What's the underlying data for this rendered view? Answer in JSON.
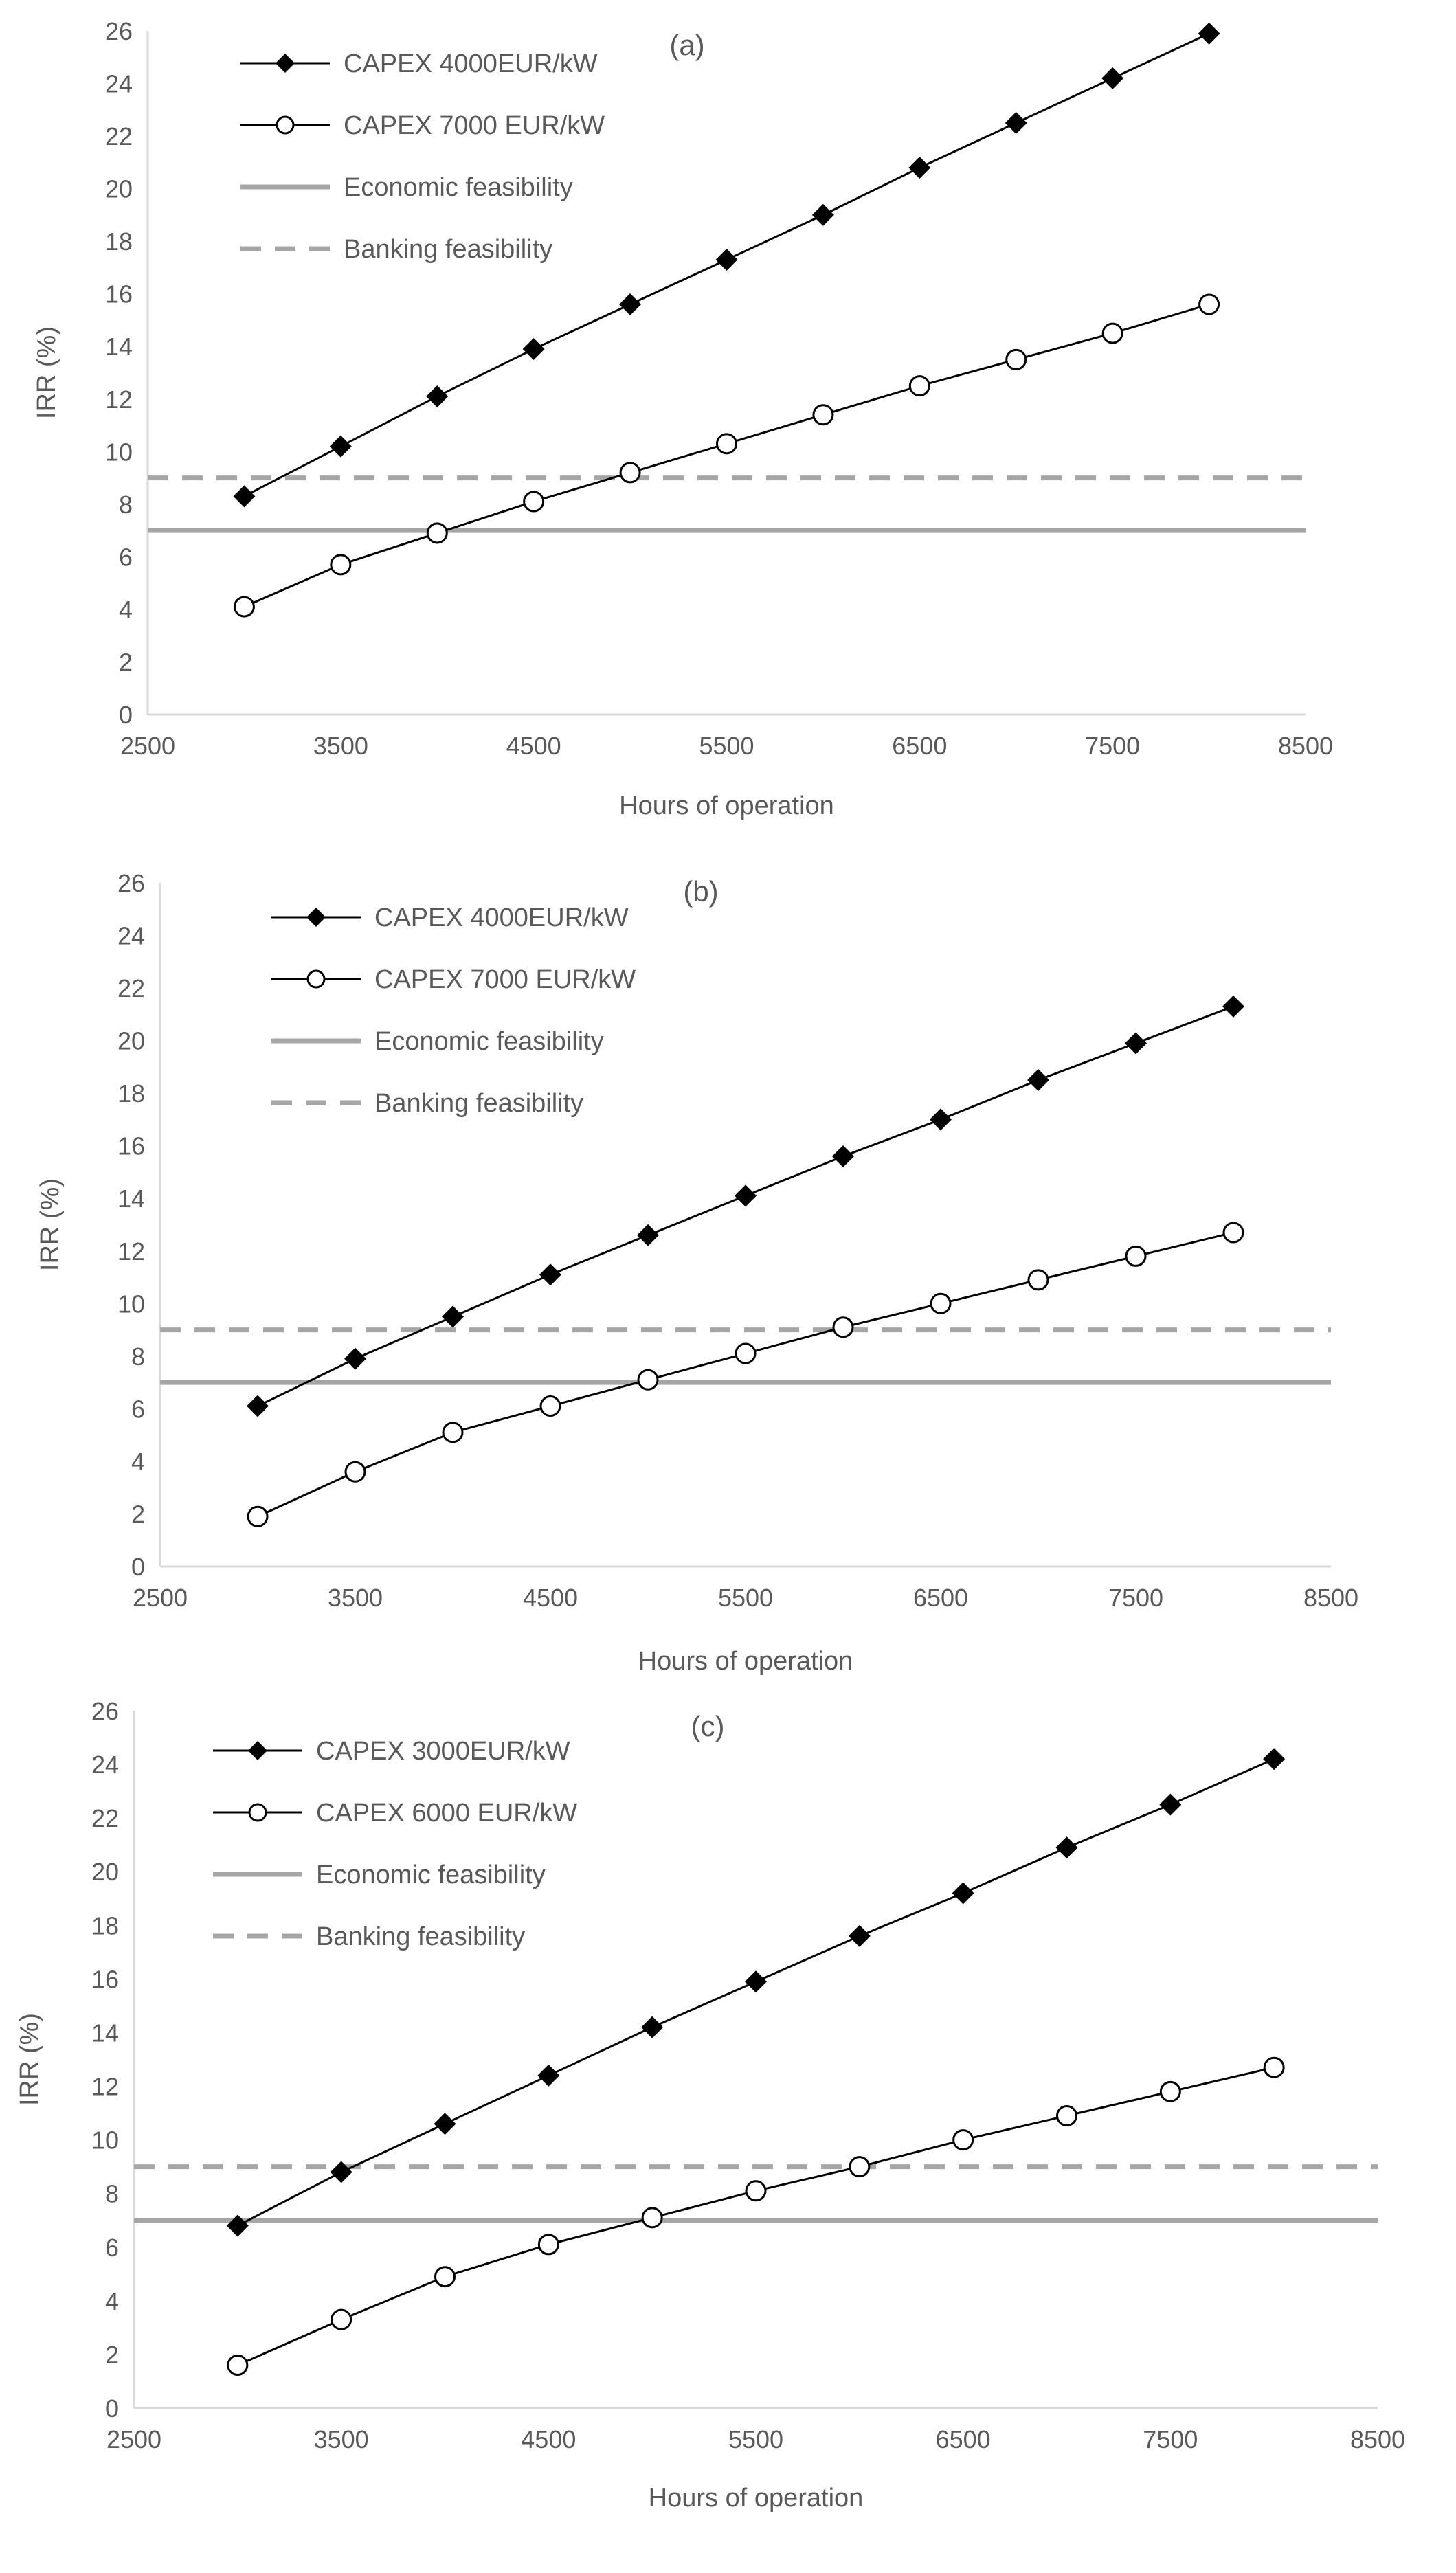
{
  "chart_data": [
    {
      "type": "line",
      "panel_label": "(a)",
      "xlabel": "Hours of operation",
      "ylabel": "IRR (%)",
      "xlim": [
        2500,
        8500
      ],
      "ylim": [
        0,
        26
      ],
      "x_ticks": [
        2500,
        3500,
        4500,
        5500,
        6500,
        7500,
        8500
      ],
      "y_ticks": [
        0,
        2,
        4,
        6,
        8,
        10,
        12,
        14,
        16,
        18,
        20,
        22,
        24,
        26
      ],
      "x": [
        3000,
        3500,
        4000,
        4500,
        5000,
        5500,
        6000,
        6500,
        7000,
        7500,
        8000
      ],
      "series": [
        {
          "name": "CAPEX 4000EUR/kW",
          "marker": "diamond-filled",
          "values": [
            8.3,
            10.2,
            12.1,
            13.9,
            15.6,
            17.3,
            19.0,
            20.8,
            22.5,
            24.2,
            25.9
          ]
        },
        {
          "name": "CAPEX 7000 EUR/kW",
          "marker": "circle-open",
          "values": [
            4.1,
            5.7,
            6.9,
            8.1,
            9.2,
            10.3,
            11.4,
            12.5,
            13.5,
            14.5,
            15.6
          ]
        }
      ],
      "reference_lines": [
        {
          "name": "Economic feasibility",
          "style": "solid",
          "value": 7.0
        },
        {
          "name": "Banking feasibility",
          "style": "dashed",
          "value": 9.0
        }
      ],
      "legend": "top-left"
    },
    {
      "type": "line",
      "panel_label": "(b)",
      "xlabel": "Hours of operation",
      "ylabel": "IRR (%)",
      "xlim": [
        2500,
        8500
      ],
      "ylim": [
        0,
        26
      ],
      "x_ticks": [
        2500,
        3500,
        4500,
        5500,
        6500,
        7500,
        8500
      ],
      "y_ticks": [
        0,
        2,
        4,
        6,
        8,
        10,
        12,
        14,
        16,
        18,
        20,
        22,
        24,
        26
      ],
      "x": [
        3000,
        3500,
        4000,
        4500,
        5000,
        5500,
        6000,
        6500,
        7000,
        7500,
        8000
      ],
      "series": [
        {
          "name": "CAPEX 4000EUR/kW",
          "marker": "diamond-filled",
          "values": [
            6.1,
            7.9,
            9.5,
            11.1,
            12.6,
            14.1,
            15.6,
            17.0,
            18.5,
            19.9,
            21.3
          ]
        },
        {
          "name": "CAPEX 7000 EUR/kW",
          "marker": "circle-open",
          "values": [
            1.9,
            3.6,
            5.1,
            6.1,
            7.1,
            8.1,
            9.1,
            10.0,
            10.9,
            11.8,
            12.7
          ]
        }
      ],
      "reference_lines": [
        {
          "name": "Economic feasibility",
          "style": "solid",
          "value": 7.0
        },
        {
          "name": "Banking feasibility",
          "style": "dashed",
          "value": 9.0
        }
      ],
      "legend": "top-left"
    },
    {
      "type": "line",
      "panel_label": "(c)",
      "xlabel": "Hours of operation",
      "ylabel": "IRR (%)",
      "xlim": [
        2500,
        8500
      ],
      "ylim": [
        0,
        26
      ],
      "x_ticks": [
        2500,
        3500,
        4500,
        5500,
        6500,
        7500,
        8500
      ],
      "y_ticks": [
        0,
        2,
        4,
        6,
        8,
        10,
        12,
        14,
        16,
        18,
        20,
        22,
        24,
        26
      ],
      "x": [
        3000,
        3500,
        4000,
        4500,
        5000,
        5500,
        6000,
        6500,
        7000,
        7500,
        8000
      ],
      "series": [
        {
          "name": "CAPEX 3000EUR/kW",
          "marker": "diamond-filled",
          "values": [
            6.8,
            8.8,
            10.6,
            12.4,
            14.2,
            15.9,
            17.6,
            19.2,
            20.9,
            22.5,
            24.2
          ]
        },
        {
          "name": "CAPEX 6000 EUR/kW",
          "marker": "circle-open",
          "values": [
            1.6,
            3.3,
            4.9,
            6.1,
            7.1,
            8.1,
            9.0,
            10.0,
            10.9,
            11.8,
            12.7
          ]
        }
      ],
      "reference_lines": [
        {
          "name": "Economic feasibility",
          "style": "solid",
          "value": 7.0
        },
        {
          "name": "Banking feasibility",
          "style": "dashed",
          "value": 9.0
        }
      ],
      "legend": "top-left"
    }
  ],
  "colors": {
    "series_line": "#000000",
    "reference_line": "#a6a6a6",
    "axis": "#d9d9d9",
    "text": "#595959"
  }
}
